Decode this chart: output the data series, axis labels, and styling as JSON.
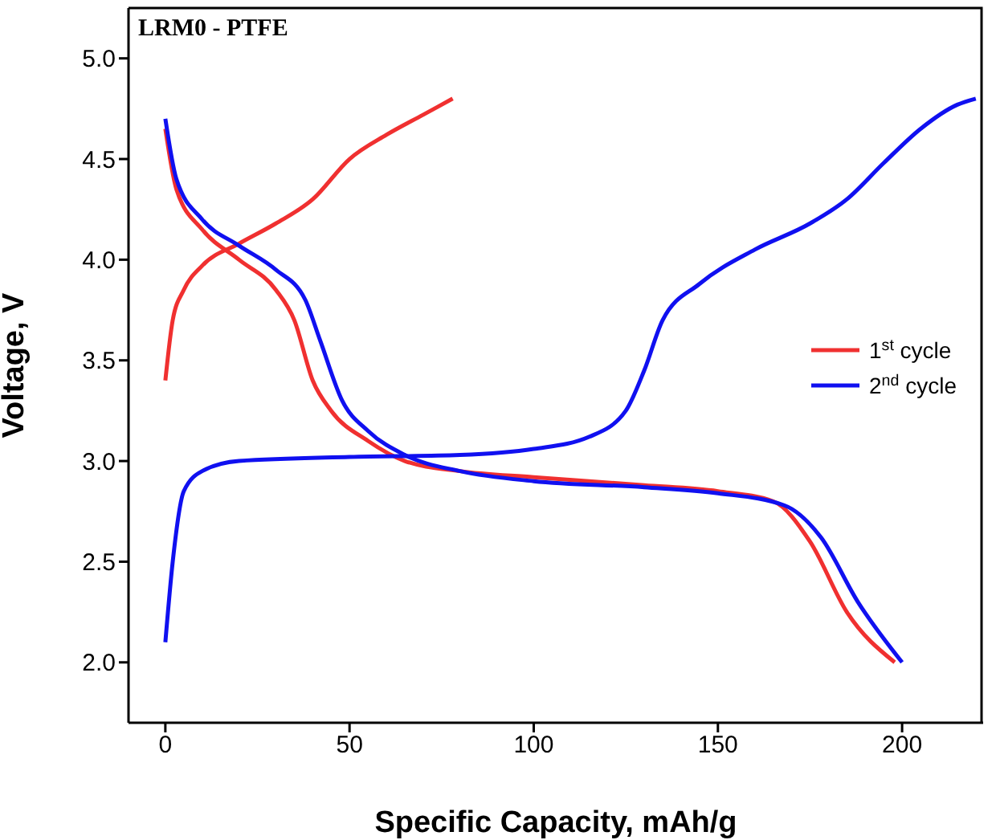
{
  "chart_data": {
    "type": "line",
    "title": "LRM0 - PTFE",
    "xlabel": "Specific Capacity, mAh/g",
    "ylabel": "Voltage, V",
    "xlim": [
      -10,
      222
    ],
    "ylim": [
      1.7,
      5.25
    ],
    "xticks": [
      0,
      50,
      100,
      150,
      200
    ],
    "yticks": [
      {
        "value": 2,
        "label": "2.0"
      },
      2.5,
      {
        "value": 3,
        "label": "3.0"
      },
      3.5,
      {
        "value": 4,
        "label": "4.0"
      },
      4.5,
      {
        "value": 5,
        "label": "5.0"
      }
    ],
    "grid": false,
    "legend": "right",
    "marker": "none",
    "line_style": "solid",
    "series": [
      {
        "name": "1$^{st}$ cycle",
        "color": "#f03030",
        "x": [
          0,
          2,
          5,
          10,
          20,
          30,
          40,
          50,
          60,
          70,
          78
        ],
        "values": [
          3.4,
          3.7,
          3.85,
          3.97,
          4.08,
          4.18,
          4.3,
          4.5,
          4.62,
          4.72,
          4.8
        ]
      },
      {
        "color": "#f03030",
        "x": [
          0,
          3,
          10,
          20,
          30,
          35,
          40,
          45,
          55,
          65,
          80,
          100,
          130,
          150,
          165,
          175,
          185,
          198
        ],
        "values": [
          4.65,
          4.35,
          4.15,
          4.0,
          3.85,
          3.7,
          3.4,
          3.25,
          3.1,
          3.0,
          2.95,
          2.92,
          2.88,
          2.85,
          2.8,
          2.6,
          2.25,
          2.0
        ]
      },
      {
        "name": "2$^{nd}$ cycle",
        "color": "#1010f0",
        "x": [
          0,
          2,
          5,
          10,
          20,
          50,
          80,
          100,
          115,
          125,
          130,
          135,
          145,
          160,
          175,
          185,
          195,
          205,
          215,
          220
        ],
        "values": [
          2.1,
          2.5,
          2.85,
          2.95,
          3.0,
          3.02,
          3.03,
          3.06,
          3.12,
          3.25,
          3.45,
          3.7,
          3.88,
          4.05,
          4.18,
          4.3,
          4.48,
          4.65,
          4.77,
          4.8
        ]
      },
      {
        "color": "#1010f0",
        "x": [
          0,
          3,
          10,
          20,
          30,
          38,
          42,
          48,
          55,
          65,
          80,
          100,
          130,
          150,
          168,
          178,
          188,
          200
        ],
        "values": [
          4.7,
          4.4,
          4.2,
          4.07,
          3.95,
          3.8,
          3.6,
          3.3,
          3.15,
          3.03,
          2.95,
          2.9,
          2.87,
          2.84,
          2.78,
          2.62,
          2.3,
          2.0
        ]
      }
    ]
  }
}
